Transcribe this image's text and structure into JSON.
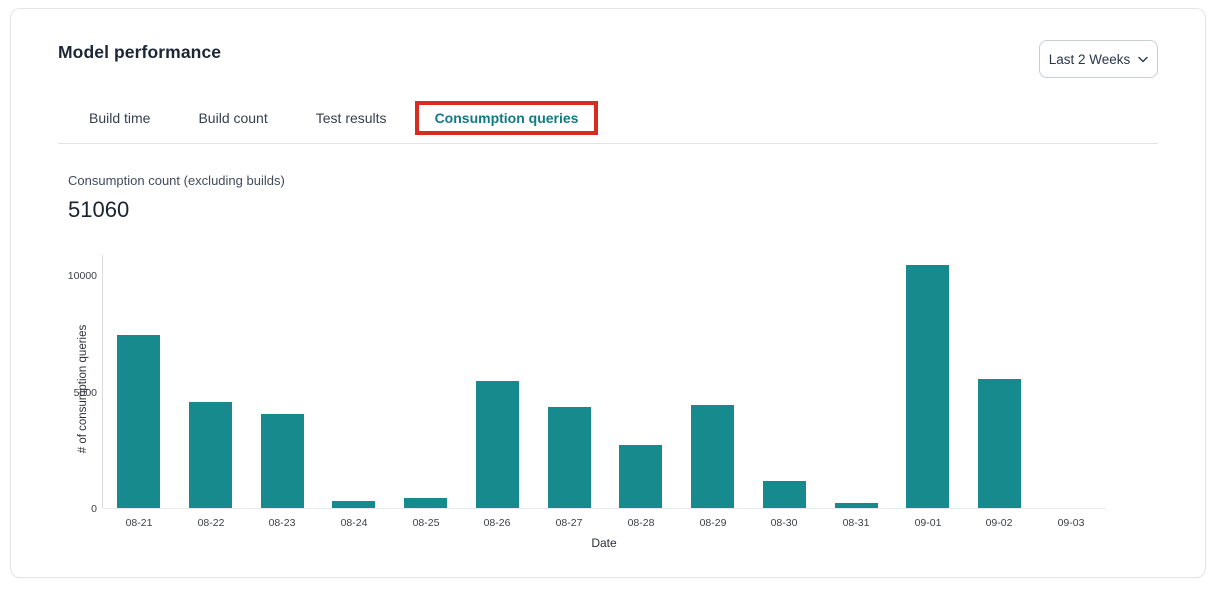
{
  "card": {
    "title": "Model performance",
    "period_selector": {
      "label": "Last 2 Weeks"
    },
    "tabs": [
      {
        "label": "Build time",
        "active": false
      },
      {
        "label": "Build count",
        "active": false
      },
      {
        "label": "Test results",
        "active": false
      },
      {
        "label": "Consumption queries",
        "active": true,
        "annotated": true
      }
    ],
    "metric": {
      "label": "Consumption count (excluding builds)",
      "value": "51060"
    }
  },
  "colors": {
    "bar_teal": "#178a8d",
    "active_tab_teal": "#0e7c82",
    "annotation_red": "#d92b1f"
  },
  "chart_data": {
    "type": "bar",
    "title": "",
    "xlabel": "Date",
    "ylabel": "# of consumption queries",
    "categories": [
      "08-21",
      "08-22",
      "08-23",
      "08-24",
      "08-25",
      "08-26",
      "08-27",
      "08-28",
      "08-29",
      "08-30",
      "08-31",
      "09-01",
      "09-02",
      "09-03"
    ],
    "values": [
      7430,
      4560,
      4040,
      290,
      430,
      5460,
      4350,
      2720,
      4420,
      1150,
      210,
      10450,
      5550,
      0
    ],
    "ylim": [
      0,
      10860
    ],
    "yticks": [
      0,
      5000,
      10000
    ],
    "grid": false,
    "legend": false,
    "bar_color": "#178a8d"
  }
}
